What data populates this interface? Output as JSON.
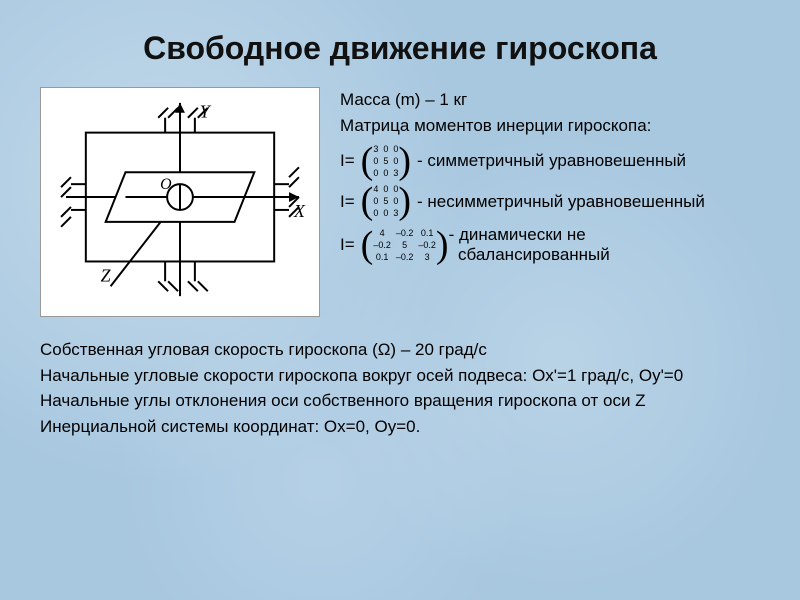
{
  "title": "Свободное движение гироскопа",
  "mass_line": "Масса (m) – 1 кг",
  "inertia_caption": "Матрица моментов инерции гироскопа:",
  "matrices": [
    {
      "prefix": "I=",
      "cells": [
        "3",
        "0",
        "0",
        "0",
        "5",
        "0",
        "0",
        "0",
        "3"
      ],
      "suffix": "- симметричный уравновешенный",
      "cell_fontsize": 9
    },
    {
      "prefix": "I=",
      "cells": [
        "4",
        "0",
        "0",
        "0",
        "5",
        "0",
        "0",
        "0",
        "3"
      ],
      "suffix": "- несимметричный уравновешенный",
      "cell_fontsize": 9
    },
    {
      "prefix": "I=",
      "cells": [
        "4",
        "–0.2",
        "0.1",
        "–0.2",
        "5",
        "–0.2",
        "0.1",
        "–0.2",
        "3"
      ],
      "suffix": "- динамически не",
      "suffix2": "  сбалансированный",
      "cell_fontsize": 9
    }
  ],
  "bottom": {
    "l1": "Собственная угловая скорость гироскопа (Ω) – 20 град/с",
    "l2": "Начальные угловые скорости гироскопа вокруг осей подвеса: Ox'=1 град/с, Oy'=0",
    "l3": "Начальные углы отклонения оси собственного вращения гироскопа от оси Z",
    "l4": "Инерциальной системы координат: Ox=0, Oy=0."
  },
  "diagram": {
    "axes": {
      "x": "X",
      "y": "Y",
      "z": "Z",
      "o": "O"
    },
    "stroke": "#000000",
    "bg": "#ffffff"
  },
  "colors": {
    "background": "#a8c8e0",
    "text": "#000000"
  }
}
